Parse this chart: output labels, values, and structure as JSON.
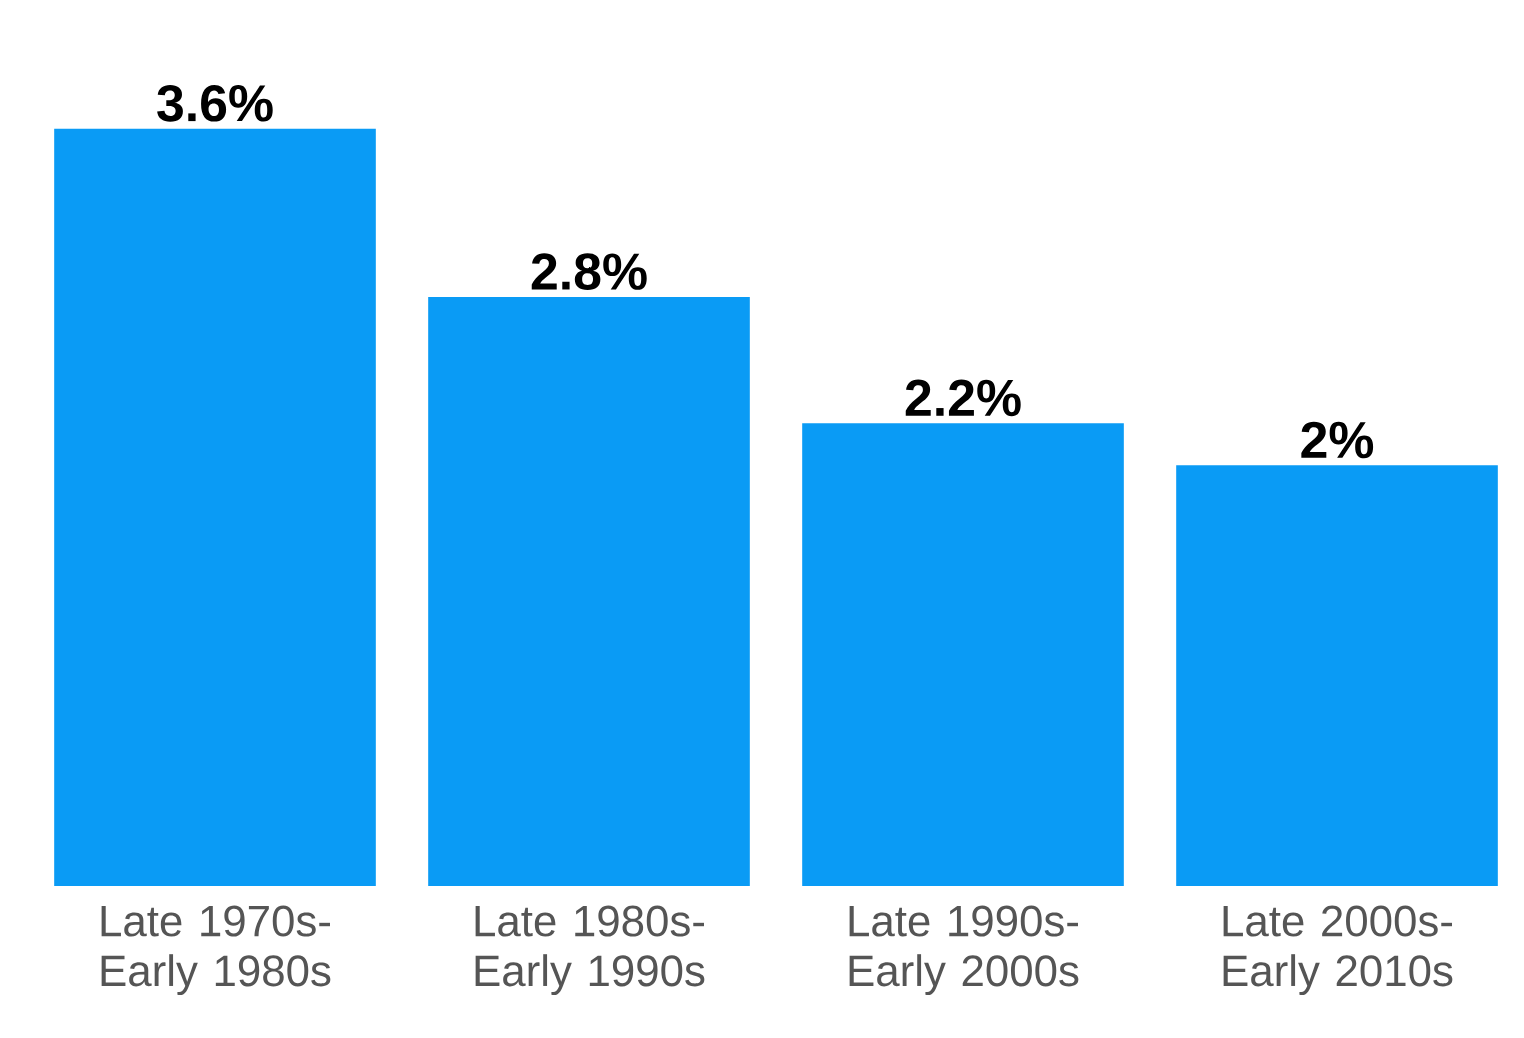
{
  "chart_data": {
    "type": "bar",
    "categories": [
      "Late 1970s-Early 1980s",
      "Late 1980s-Early 1990s",
      "Late 1990s-Early 2000s",
      "Late 2000s-Early 2010s"
    ],
    "values": [
      3.6,
      2.8,
      2.2,
      2
    ],
    "color": "#0a9bf5",
    "value_labels": [
      "3.6%",
      "2.8%",
      "2.2%",
      "2%"
    ]
  }
}
